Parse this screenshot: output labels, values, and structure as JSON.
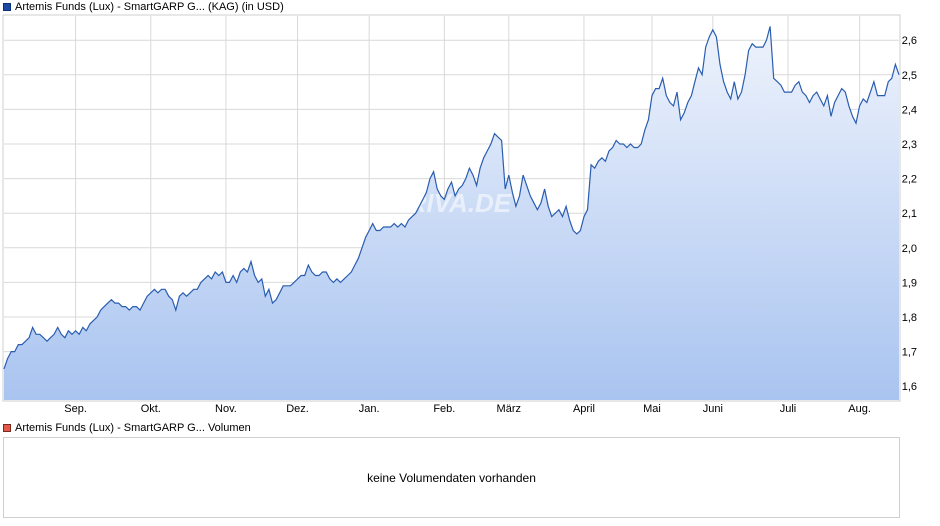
{
  "legend": {
    "price_label": "Artemis Funds (Lux) - SmartGARP G...  (KAG)  (in USD)",
    "volume_label": "Artemis Funds (Lux) - SmartGARP G... Volumen"
  },
  "volume_panel": {
    "message": "keine Volumendaten vorhanden"
  },
  "colors": {
    "line": "#2a5db0",
    "fill_top": "#eef3fc",
    "fill_bottom": "#a9c4f0",
    "grid": "#d9d9d9",
    "price_swatch": "#1a4aa5",
    "volume_swatch": "#e35a4a"
  },
  "chart_data": {
    "type": "area",
    "title": "Artemis Funds (Lux) - SmartGARP G...  (KAG)  (in USD)",
    "xlabel": "",
    "ylabel": "",
    "ylim": [
      1.56,
      2.67
    ],
    "yticks": [
      1.6,
      1.7,
      1.8,
      1.9,
      2.0,
      2.1,
      2.2,
      2.3,
      2.4,
      2.5,
      2.6
    ],
    "ytick_labels": [
      "1,6",
      "1,7",
      "1,8",
      "1,9",
      "2,0",
      "2,1",
      "2,2",
      "2,3",
      "2,4",
      "2,5",
      "2,6"
    ],
    "xlim": [
      0,
      250
    ],
    "xticks": [
      {
        "label": "Sep.",
        "pos": 20
      },
      {
        "label": "Okt.",
        "pos": 41
      },
      {
        "label": "Nov.",
        "pos": 62
      },
      {
        "label": "Dez.",
        "pos": 82
      },
      {
        "label": "Jan.",
        "pos": 102
      },
      {
        "label": "Feb.",
        "pos": 123
      },
      {
        "label": "März",
        "pos": 141
      },
      {
        "label": "April",
        "pos": 162
      },
      {
        "label": "Mai",
        "pos": 181
      },
      {
        "label": "Juni",
        "pos": 198
      },
      {
        "label": "Juli",
        "pos": 219
      },
      {
        "label": "Aug.",
        "pos": 239
      }
    ],
    "grid": true,
    "watermark": "ARIVA.DE",
    "series": [
      {
        "points": [
          [
            0,
            1.65
          ],
          [
            1,
            1.68
          ],
          [
            2,
            1.7
          ],
          [
            3,
            1.7
          ],
          [
            4,
            1.72
          ],
          [
            5,
            1.72
          ],
          [
            6,
            1.73
          ],
          [
            7,
            1.74
          ],
          [
            8,
            1.77
          ],
          [
            9,
            1.75
          ],
          [
            10,
            1.75
          ],
          [
            11,
            1.74
          ],
          [
            12,
            1.73
          ],
          [
            13,
            1.74
          ],
          [
            14,
            1.75
          ],
          [
            15,
            1.77
          ],
          [
            16,
            1.75
          ],
          [
            17,
            1.74
          ],
          [
            18,
            1.76
          ],
          [
            19,
            1.75
          ],
          [
            20,
            1.76
          ],
          [
            21,
            1.75
          ],
          [
            22,
            1.77
          ],
          [
            23,
            1.76
          ],
          [
            24,
            1.78
          ],
          [
            25,
            1.79
          ],
          [
            26,
            1.8
          ],
          [
            27,
            1.82
          ],
          [
            28,
            1.83
          ],
          [
            29,
            1.84
          ],
          [
            30,
            1.85
          ],
          [
            31,
            1.84
          ],
          [
            32,
            1.84
          ],
          [
            33,
            1.83
          ],
          [
            34,
            1.83
          ],
          [
            35,
            1.82
          ],
          [
            36,
            1.83
          ],
          [
            37,
            1.83
          ],
          [
            38,
            1.82
          ],
          [
            39,
            1.84
          ],
          [
            40,
            1.86
          ],
          [
            41,
            1.87
          ],
          [
            42,
            1.88
          ],
          [
            43,
            1.87
          ],
          [
            44,
            1.88
          ],
          [
            45,
            1.88
          ],
          [
            46,
            1.86
          ],
          [
            47,
            1.85
          ],
          [
            48,
            1.82
          ],
          [
            49,
            1.86
          ],
          [
            50,
            1.87
          ],
          [
            51,
            1.86
          ],
          [
            52,
            1.87
          ],
          [
            53,
            1.88
          ],
          [
            54,
            1.88
          ],
          [
            55,
            1.9
          ],
          [
            56,
            1.91
          ],
          [
            57,
            1.92
          ],
          [
            58,
            1.91
          ],
          [
            59,
            1.93
          ],
          [
            60,
            1.92
          ],
          [
            61,
            1.93
          ],
          [
            62,
            1.9
          ],
          [
            63,
            1.9
          ],
          [
            64,
            1.92
          ],
          [
            65,
            1.9
          ],
          [
            66,
            1.93
          ],
          [
            67,
            1.94
          ],
          [
            68,
            1.93
          ],
          [
            69,
            1.96
          ],
          [
            70,
            1.92
          ],
          [
            71,
            1.9
          ],
          [
            72,
            1.91
          ],
          [
            73,
            1.86
          ],
          [
            74,
            1.88
          ],
          [
            75,
            1.84
          ],
          [
            76,
            1.85
          ],
          [
            77,
            1.87
          ],
          [
            78,
            1.89
          ],
          [
            79,
            1.89
          ],
          [
            80,
            1.89
          ],
          [
            81,
            1.9
          ],
          [
            82,
            1.91
          ],
          [
            83,
            1.92
          ],
          [
            84,
            1.92
          ],
          [
            85,
            1.95
          ],
          [
            86,
            1.93
          ],
          [
            87,
            1.92
          ],
          [
            88,
            1.92
          ],
          [
            89,
            1.93
          ],
          [
            90,
            1.93
          ],
          [
            91,
            1.91
          ],
          [
            92,
            1.9
          ],
          [
            93,
            1.91
          ],
          [
            94,
            1.9
          ],
          [
            95,
            1.91
          ],
          [
            96,
            1.92
          ],
          [
            97,
            1.93
          ],
          [
            98,
            1.95
          ],
          [
            99,
            1.97
          ],
          [
            100,
            2.0
          ],
          [
            101,
            2.03
          ],
          [
            102,
            2.05
          ],
          [
            103,
            2.07
          ],
          [
            104,
            2.05
          ],
          [
            105,
            2.05
          ],
          [
            106,
            2.06
          ],
          [
            107,
            2.06
          ],
          [
            108,
            2.06
          ],
          [
            109,
            2.07
          ],
          [
            110,
            2.06
          ],
          [
            111,
            2.07
          ],
          [
            112,
            2.06
          ],
          [
            113,
            2.08
          ],
          [
            114,
            2.09
          ],
          [
            115,
            2.1
          ],
          [
            116,
            2.12
          ],
          [
            117,
            2.14
          ],
          [
            118,
            2.16
          ],
          [
            119,
            2.2
          ],
          [
            120,
            2.22
          ],
          [
            121,
            2.17
          ],
          [
            122,
            2.15
          ],
          [
            123,
            2.14
          ],
          [
            124,
            2.17
          ],
          [
            125,
            2.19
          ],
          [
            126,
            2.15
          ],
          [
            127,
            2.17
          ],
          [
            128,
            2.18
          ],
          [
            129,
            2.2
          ],
          [
            130,
            2.23
          ],
          [
            131,
            2.21
          ],
          [
            132,
            2.18
          ],
          [
            133,
            2.23
          ],
          [
            134,
            2.26
          ],
          [
            135,
            2.28
          ],
          [
            136,
            2.3
          ],
          [
            137,
            2.33
          ],
          [
            138,
            2.32
          ],
          [
            139,
            2.31
          ],
          [
            140,
            2.17
          ],
          [
            141,
            2.21
          ],
          [
            142,
            2.16
          ],
          [
            143,
            2.12
          ],
          [
            144,
            2.15
          ],
          [
            145,
            2.21
          ],
          [
            146,
            2.18
          ],
          [
            147,
            2.15
          ],
          [
            148,
            2.13
          ],
          [
            149,
            2.11
          ],
          [
            150,
            2.13
          ],
          [
            151,
            2.17
          ],
          [
            152,
            2.12
          ],
          [
            153,
            2.09
          ],
          [
            154,
            2.1
          ],
          [
            155,
            2.11
          ],
          [
            156,
            2.09
          ],
          [
            157,
            2.12
          ],
          [
            158,
            2.08
          ],
          [
            159,
            2.05
          ],
          [
            160,
            2.04
          ],
          [
            161,
            2.05
          ],
          [
            162,
            2.09
          ],
          [
            163,
            2.11
          ],
          [
            164,
            2.24
          ],
          [
            165,
            2.23
          ],
          [
            166,
            2.25
          ],
          [
            167,
            2.26
          ],
          [
            168,
            2.25
          ],
          [
            169,
            2.28
          ],
          [
            170,
            2.29
          ],
          [
            171,
            2.31
          ],
          [
            172,
            2.3
          ],
          [
            173,
            2.3
          ],
          [
            174,
            2.29
          ],
          [
            175,
            2.3
          ],
          [
            176,
            2.29
          ],
          [
            177,
            2.29
          ],
          [
            178,
            2.3
          ],
          [
            179,
            2.34
          ],
          [
            180,
            2.37
          ],
          [
            181,
            2.44
          ],
          [
            182,
            2.46
          ],
          [
            183,
            2.46
          ],
          [
            184,
            2.49
          ],
          [
            185,
            2.44
          ],
          [
            186,
            2.42
          ],
          [
            187,
            2.41
          ],
          [
            188,
            2.45
          ],
          [
            189,
            2.37
          ],
          [
            190,
            2.39
          ],
          [
            191,
            2.42
          ],
          [
            192,
            2.44
          ],
          [
            193,
            2.48
          ],
          [
            194,
            2.52
          ],
          [
            195,
            2.5
          ],
          [
            196,
            2.58
          ],
          [
            197,
            2.61
          ],
          [
            198,
            2.63
          ],
          [
            199,
            2.61
          ],
          [
            200,
            2.53
          ],
          [
            201,
            2.48
          ],
          [
            202,
            2.45
          ],
          [
            203,
            2.43
          ],
          [
            204,
            2.48
          ],
          [
            205,
            2.43
          ],
          [
            206,
            2.45
          ],
          [
            207,
            2.5
          ],
          [
            208,
            2.57
          ],
          [
            209,
            2.59
          ],
          [
            210,
            2.58
          ],
          [
            211,
            2.58
          ],
          [
            212,
            2.58
          ],
          [
            213,
            2.6
          ],
          [
            214,
            2.64
          ],
          [
            215,
            2.49
          ],
          [
            216,
            2.48
          ],
          [
            217,
            2.47
          ],
          [
            218,
            2.45
          ],
          [
            219,
            2.45
          ],
          [
            220,
            2.45
          ],
          [
            221,
            2.47
          ],
          [
            222,
            2.48
          ],
          [
            223,
            2.45
          ],
          [
            224,
            2.44
          ],
          [
            225,
            2.42
          ],
          [
            226,
            2.44
          ],
          [
            227,
            2.45
          ],
          [
            228,
            2.43
          ],
          [
            229,
            2.41
          ],
          [
            230,
            2.44
          ],
          [
            231,
            2.38
          ],
          [
            232,
            2.42
          ],
          [
            233,
            2.44
          ],
          [
            234,
            2.46
          ],
          [
            235,
            2.45
          ],
          [
            236,
            2.41
          ],
          [
            237,
            2.38
          ],
          [
            238,
            2.36
          ],
          [
            239,
            2.41
          ],
          [
            240,
            2.43
          ],
          [
            241,
            2.42
          ],
          [
            242,
            2.45
          ],
          [
            243,
            2.48
          ],
          [
            244,
            2.44
          ],
          [
            245,
            2.44
          ],
          [
            246,
            2.44
          ],
          [
            247,
            2.48
          ],
          [
            248,
            2.49
          ],
          [
            249,
            2.53
          ],
          [
            250,
            2.5
          ]
        ]
      }
    ]
  }
}
